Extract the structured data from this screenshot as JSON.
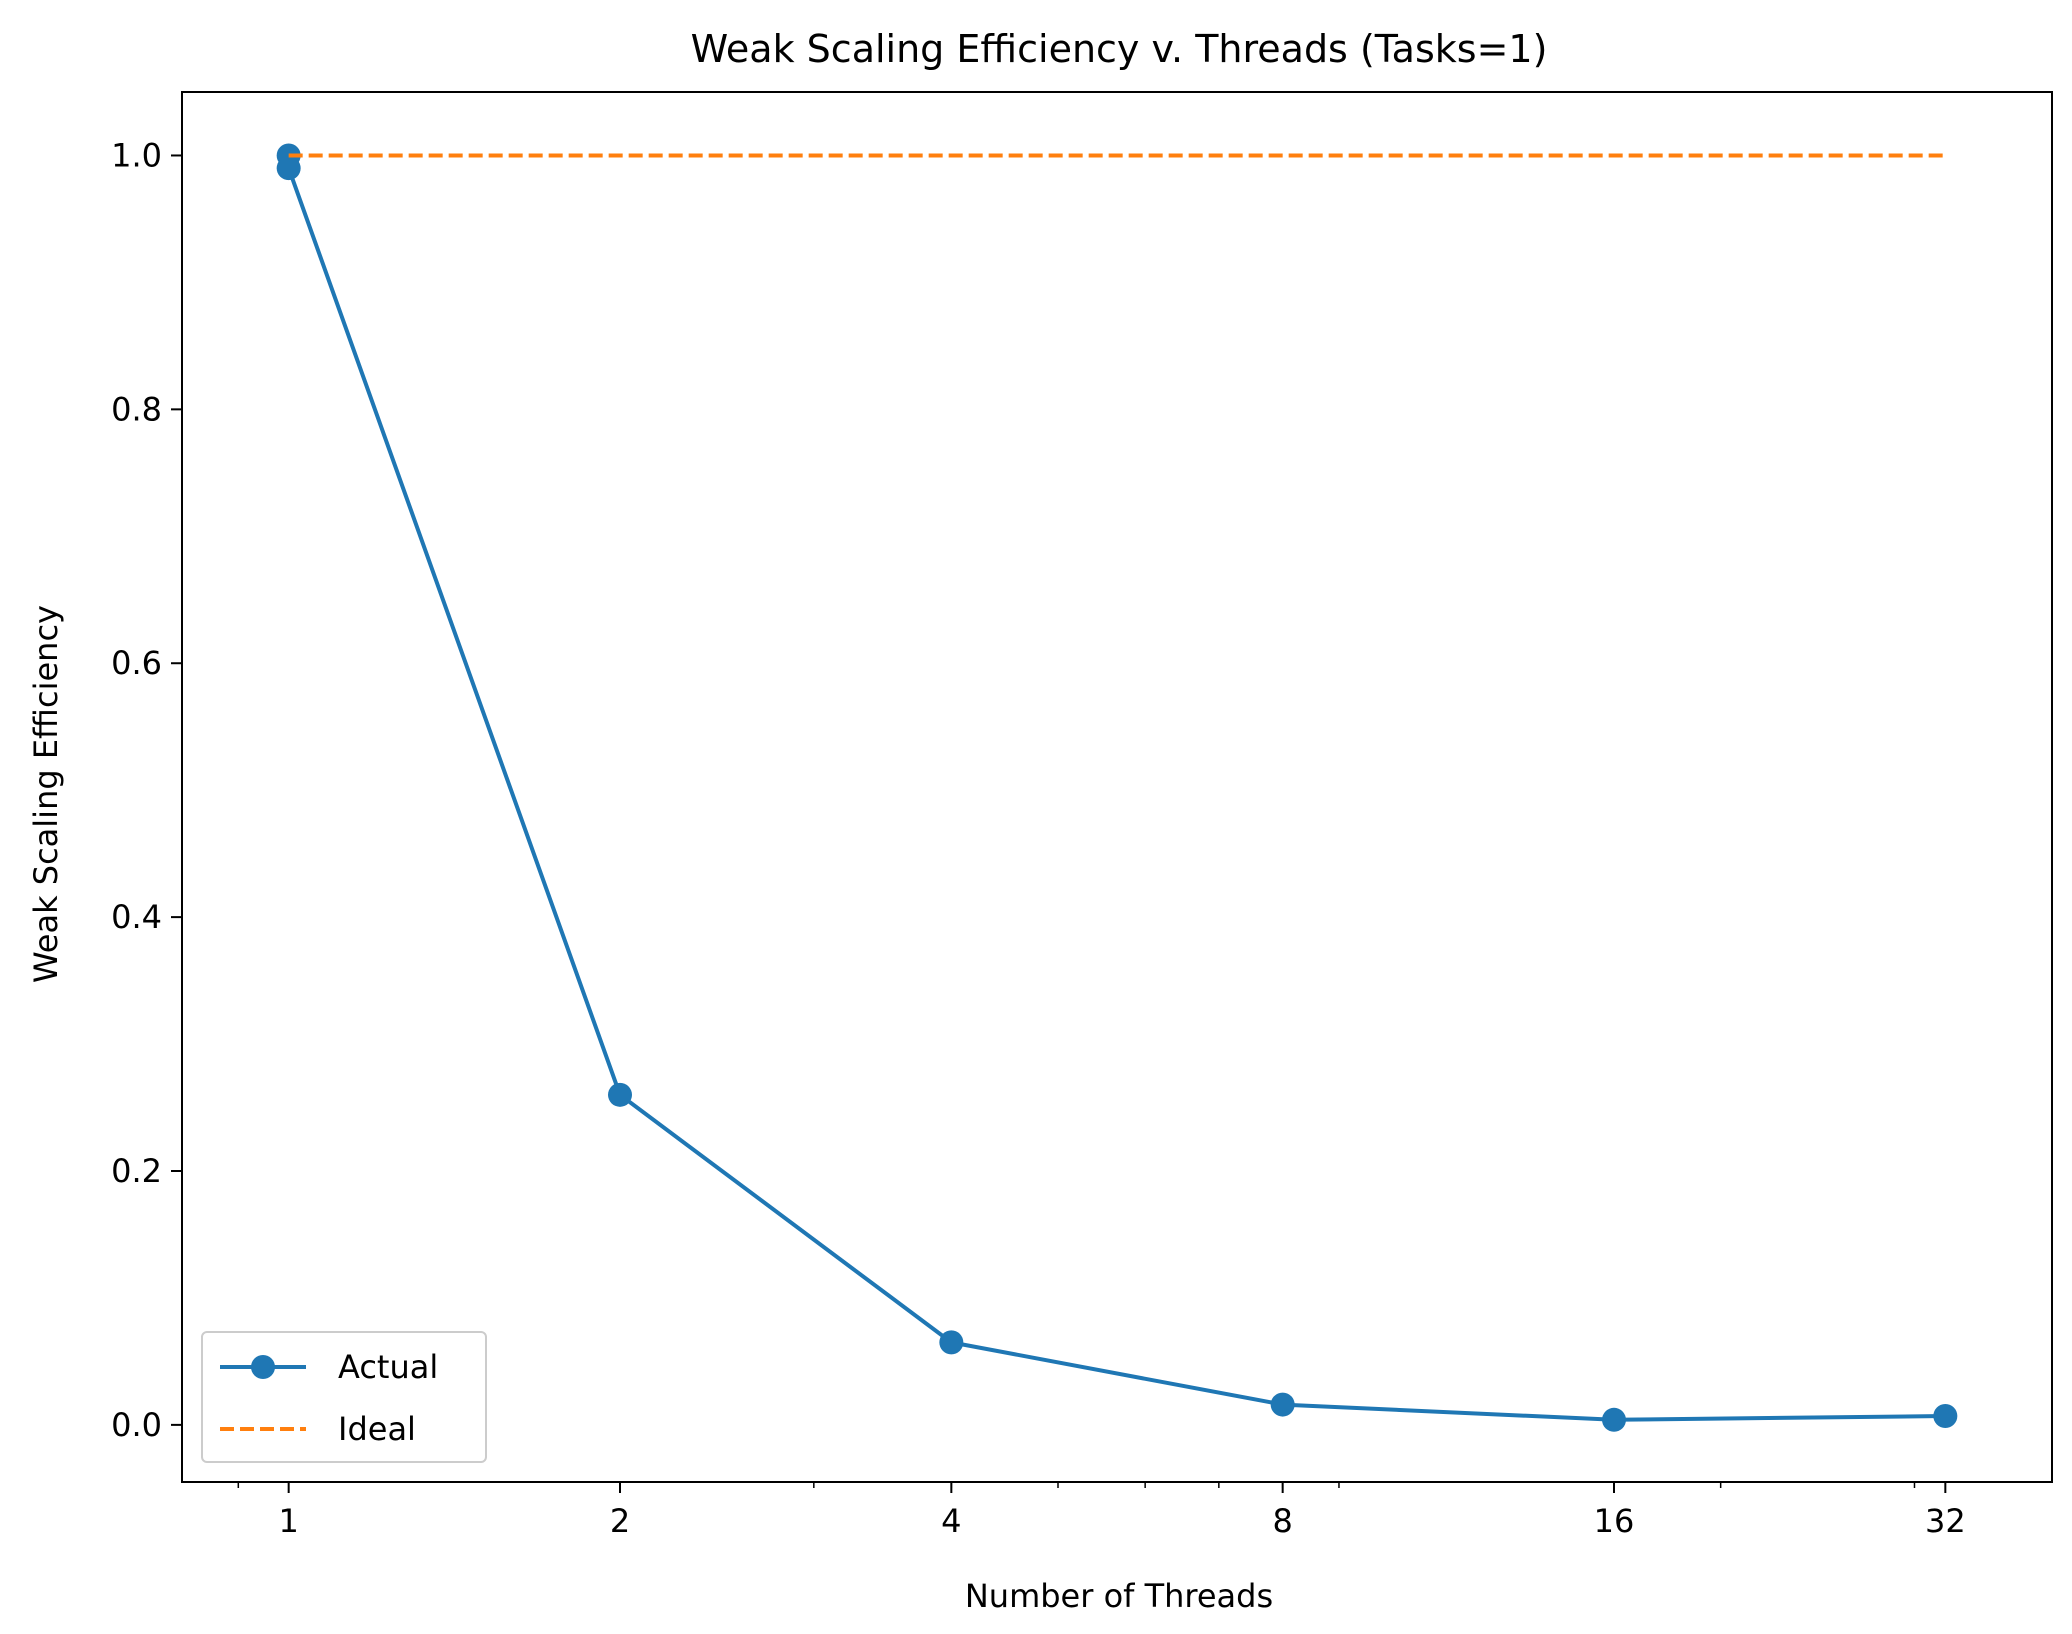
{
  "chart_data": {
    "type": "line",
    "title": "Weak Scaling Efficiency v. Threads (Tasks=1)",
    "xlabel": "Number of Threads",
    "ylabel": "Weak Scaling Efficiency",
    "xscale": "log2",
    "xlim": [
      0.8,
      40
    ],
    "ylim": [
      -0.045,
      1.05
    ],
    "xticks": [
      1,
      2,
      4,
      8,
      16,
      32
    ],
    "xtick_labels": [
      "1",
      "2",
      "4",
      "8",
      "16",
      "32"
    ],
    "yticks": [
      0.0,
      0.2,
      0.4,
      0.6,
      0.8,
      1.0
    ],
    "ytick_labels": [
      "0.0",
      "0.2",
      "0.4",
      "0.6",
      "0.8",
      "1.0"
    ],
    "grid": false,
    "legend_position": "lower-left",
    "series": [
      {
        "name": "Actual",
        "style": "solid-marker",
        "color": "#1f77b4",
        "x": [
          1,
          1,
          2,
          4,
          8,
          16,
          32
        ],
        "y": [
          1.0,
          0.99,
          0.26,
          0.065,
          0.016,
          0.004,
          0.007
        ]
      },
      {
        "name": "Ideal",
        "style": "dashed",
        "color": "#ff7f0e",
        "x": [
          1,
          32
        ],
        "y": [
          1.0,
          1.0
        ]
      }
    ]
  }
}
